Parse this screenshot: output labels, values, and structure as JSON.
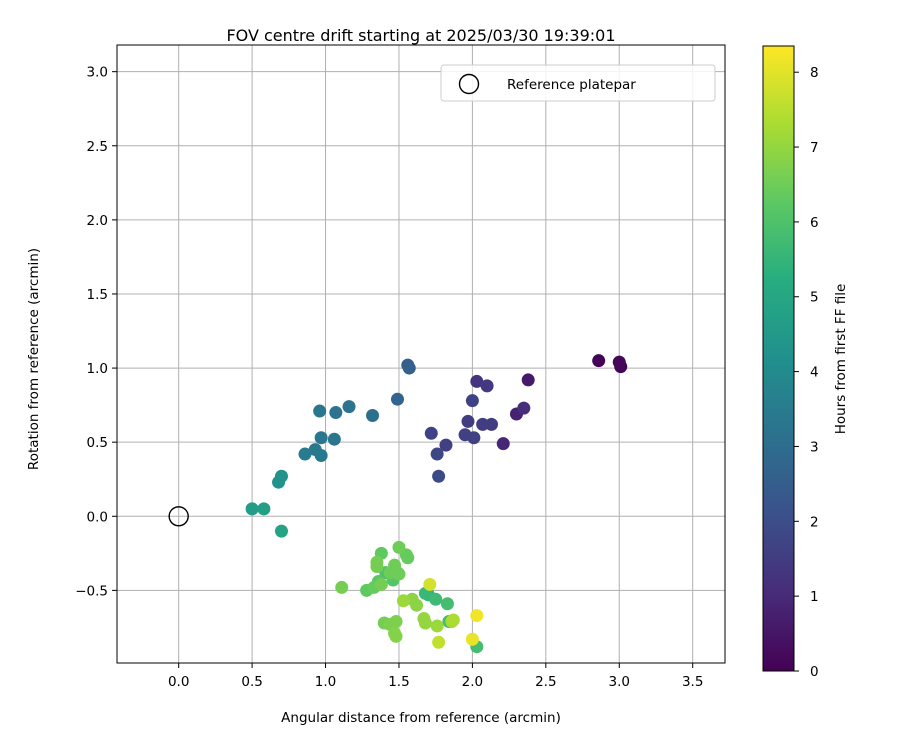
{
  "chart_data": {
    "type": "scatter",
    "title": "FOV centre drift starting at 2025/03/30 19:39:01",
    "xlabel": "Angular distance from reference (arcmin)",
    "ylabel": "Rotation from reference (arcmin)",
    "xlim": [
      -0.42,
      3.72
    ],
    "ylim": [
      -0.99,
      3.18
    ],
    "xticks": [
      "0.0",
      "0.5",
      "1.0",
      "1.5",
      "2.0",
      "2.5",
      "3.0",
      "3.5"
    ],
    "yticks": [
      "−0.5",
      "0.0",
      "0.5",
      "1.0",
      "1.5",
      "2.0",
      "2.5",
      "3.0"
    ],
    "grid": true,
    "legend": {
      "location": "upper right",
      "entries": [
        "Reference platepar"
      ]
    },
    "reference_point": {
      "x": 0.0,
      "y": 0.0,
      "label": "Reference platepar"
    },
    "colorbar": {
      "label": "Hours from first FF file",
      "range": [
        0,
        8.35
      ],
      "ticks": [
        "0",
        "1",
        "2",
        "3",
        "4",
        "5",
        "6",
        "7",
        "8"
      ],
      "colormap": "viridis"
    },
    "points": [
      {
        "x": 2.86,
        "y": 1.05,
        "h": 0.05
      },
      {
        "x": 3.01,
        "y": 1.01,
        "h": 0.1
      },
      {
        "x": 3.0,
        "y": 1.04,
        "h": 0.15
      },
      {
        "x": 2.38,
        "y": 0.92,
        "h": 0.6
      },
      {
        "x": 2.3,
        "y": 0.69,
        "h": 0.8
      },
      {
        "x": 2.21,
        "y": 0.49,
        "h": 0.9
      },
      {
        "x": 2.35,
        "y": 0.73,
        "h": 1.1
      },
      {
        "x": 2.03,
        "y": 0.91,
        "h": 1.3
      },
      {
        "x": 2.1,
        "y": 0.88,
        "h": 1.4
      },
      {
        "x": 2.13,
        "y": 0.62,
        "h": 1.5
      },
      {
        "x": 2.07,
        "y": 0.62,
        "h": 1.5
      },
      {
        "x": 1.97,
        "y": 0.64,
        "h": 1.5
      },
      {
        "x": 1.95,
        "y": 0.55,
        "h": 1.6
      },
      {
        "x": 2.01,
        "y": 0.53,
        "h": 1.6
      },
      {
        "x": 1.82,
        "y": 0.48,
        "h": 1.6
      },
      {
        "x": 2.0,
        "y": 0.78,
        "h": 1.7
      },
      {
        "x": 1.72,
        "y": 0.56,
        "h": 1.7
      },
      {
        "x": 1.76,
        "y": 0.42,
        "h": 1.8
      },
      {
        "x": 1.77,
        "y": 0.27,
        "h": 1.9
      },
      {
        "x": 1.56,
        "y": 1.02,
        "h": 2.6
      },
      {
        "x": 1.57,
        "y": 1.0,
        "h": 2.6
      },
      {
        "x": 1.49,
        "y": 0.79,
        "h": 2.7
      },
      {
        "x": 1.32,
        "y": 0.68,
        "h": 3.1
      },
      {
        "x": 1.16,
        "y": 0.74,
        "h": 3.2
      },
      {
        "x": 1.07,
        "y": 0.7,
        "h": 3.2
      },
      {
        "x": 0.96,
        "y": 0.71,
        "h": 3.3
      },
      {
        "x": 0.97,
        "y": 0.53,
        "h": 3.3
      },
      {
        "x": 1.06,
        "y": 0.52,
        "h": 3.3
      },
      {
        "x": 0.93,
        "y": 0.45,
        "h": 3.4
      },
      {
        "x": 0.97,
        "y": 0.41,
        "h": 3.4
      },
      {
        "x": 0.86,
        "y": 0.42,
        "h": 3.5
      },
      {
        "x": 0.7,
        "y": 0.27,
        "h": 4.3
      },
      {
        "x": 0.68,
        "y": 0.23,
        "h": 4.3
      },
      {
        "x": 0.5,
        "y": 0.05,
        "h": 4.6
      },
      {
        "x": 0.58,
        "y": 0.05,
        "h": 4.7
      },
      {
        "x": 0.7,
        "y": -0.1,
        "h": 4.9
      },
      {
        "x": 1.7,
        "y": -0.53,
        "h": 5.5
      },
      {
        "x": 1.68,
        "y": -0.52,
        "h": 5.6
      },
      {
        "x": 1.75,
        "y": -0.56,
        "h": 5.7
      },
      {
        "x": 1.83,
        "y": -0.59,
        "h": 5.8
      },
      {
        "x": 1.84,
        "y": -0.71,
        "h": 5.8
      },
      {
        "x": 2.03,
        "y": -0.88,
        "h": 5.8
      },
      {
        "x": 1.41,
        "y": -0.38,
        "h": 6.0
      },
      {
        "x": 1.46,
        "y": -0.43,
        "h": 6.1
      },
      {
        "x": 1.36,
        "y": -0.44,
        "h": 6.2
      },
      {
        "x": 1.38,
        "y": -0.25,
        "h": 6.3
      },
      {
        "x": 1.28,
        "y": -0.5,
        "h": 6.3
      },
      {
        "x": 1.33,
        "y": -0.48,
        "h": 6.4
      },
      {
        "x": 1.55,
        "y": -0.26,
        "h": 6.4
      },
      {
        "x": 1.56,
        "y": -0.28,
        "h": 6.4
      },
      {
        "x": 1.5,
        "y": -0.21,
        "h": 6.5
      },
      {
        "x": 1.44,
        "y": -0.38,
        "h": 6.5
      },
      {
        "x": 1.47,
        "y": -0.33,
        "h": 6.5
      },
      {
        "x": 1.49,
        "y": -0.38,
        "h": 6.5
      },
      {
        "x": 1.5,
        "y": -0.39,
        "h": 6.5
      },
      {
        "x": 1.35,
        "y": -0.31,
        "h": 6.6
      },
      {
        "x": 1.35,
        "y": -0.34,
        "h": 6.6
      },
      {
        "x": 1.38,
        "y": -0.46,
        "h": 6.6
      },
      {
        "x": 1.11,
        "y": -0.48,
        "h": 6.6
      },
      {
        "x": 1.4,
        "y": -0.72,
        "h": 6.6
      },
      {
        "x": 1.44,
        "y": -0.73,
        "h": 6.7
      },
      {
        "x": 1.48,
        "y": -0.71,
        "h": 6.7
      },
      {
        "x": 1.48,
        "y": -0.81,
        "h": 6.8
      },
      {
        "x": 1.47,
        "y": -0.79,
        "h": 6.8
      },
      {
        "x": 1.59,
        "y": -0.56,
        "h": 6.9
      },
      {
        "x": 1.62,
        "y": -0.6,
        "h": 6.9
      },
      {
        "x": 1.53,
        "y": -0.57,
        "h": 7.1
      },
      {
        "x": 1.67,
        "y": -0.69,
        "h": 7.0
      },
      {
        "x": 1.68,
        "y": -0.72,
        "h": 7.0
      },
      {
        "x": 1.76,
        "y": -0.74,
        "h": 7.1
      },
      {
        "x": 1.86,
        "y": -0.71,
        "h": 7.2
      },
      {
        "x": 1.87,
        "y": -0.7,
        "h": 7.3
      },
      {
        "x": 1.77,
        "y": -0.85,
        "h": 7.6
      },
      {
        "x": 1.71,
        "y": -0.46,
        "h": 7.8
      },
      {
        "x": 2.0,
        "y": -0.83,
        "h": 8.1
      },
      {
        "x": 2.03,
        "y": -0.67,
        "h": 8.2
      }
    ]
  }
}
